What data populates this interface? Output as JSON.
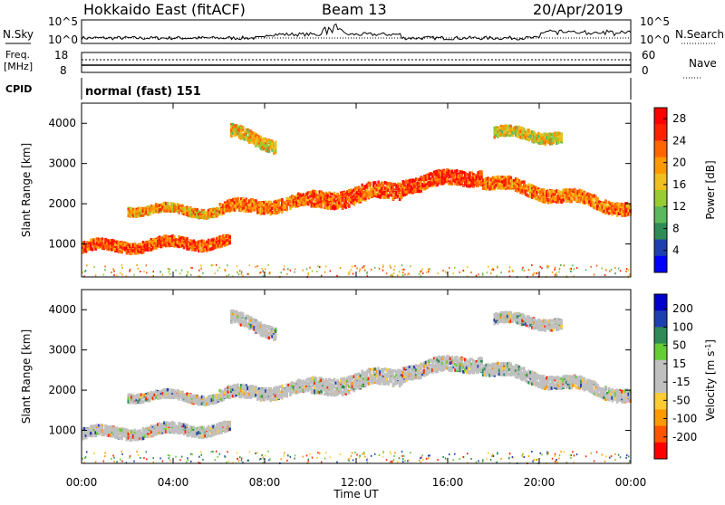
{
  "header": {
    "station": "Hokkaido East (fitACF)",
    "beam": "Beam 13",
    "date": "20/Apr/2019"
  },
  "noise_panel": {
    "left_label": "N.Sky",
    "right_label": "N.Search",
    "left_ticks": [
      "10^5",
      "10^0"
    ],
    "right_ticks": [
      "10^5",
      "10^0"
    ]
  },
  "freq_panel": {
    "left_label_1": "Freq.",
    "left_label_2": "[MHz]",
    "right_label": "Nave",
    "left_ticks": [
      "18",
      "8"
    ],
    "right_ticks": [
      "60",
      "0"
    ]
  },
  "cpid_panel": {
    "label": "CPID",
    "value": "normal (fast) 151"
  },
  "x_axis": {
    "label": "Time UT",
    "ticks": [
      "00:00",
      "04:00",
      "08:00",
      "12:00",
      "16:00",
      "20:00",
      "00:00"
    ]
  },
  "colors": {
    "power_scale": [
      "#0000ff",
      "#1e3fb0",
      "#2e8b57",
      "#5cb85c",
      "#99cc33",
      "#f0c020",
      "#ff9900",
      "#ff6600",
      "#ff2200",
      "#ff0000"
    ],
    "velocity_scale": [
      "#ff0000",
      "#ff5500",
      "#ff9900",
      "#ffcc33",
      "#c0c0c0",
      "#c0c0c0",
      "#66cc33",
      "#2e8b57",
      "#1e3fb0",
      "#0000cc"
    ]
  },
  "chart_data": [
    {
      "type": "heatmap",
      "title": "Power",
      "ylabel": "Slant Range [km]",
      "xlabel": "",
      "x_range_hours": [
        0,
        24
      ],
      "ylim": [
        180,
        4500
      ],
      "y_ticks": [
        "1000",
        "2000",
        "3000",
        "4000"
      ],
      "colorbar": {
        "label": "Power [dB]",
        "ticks": [
          "4",
          "8",
          "12",
          "16",
          "20",
          "24",
          "28"
        ],
        "range": [
          0,
          30
        ]
      },
      "bands": [
        {
          "x": [
            0,
            6.5
          ],
          "y_center": [
            950,
            1100
          ],
          "width": 250,
          "level": 24
        },
        {
          "x": [
            2,
            6
          ],
          "y_center": [
            1900,
            1850
          ],
          "width": 200,
          "level": 20
        },
        {
          "x": [
            6,
            10
          ],
          "y_center": [
            1900,
            2100
          ],
          "width": 300,
          "level": 22
        },
        {
          "x": [
            10,
            14
          ],
          "y_center": [
            2100,
            2400
          ],
          "width": 400,
          "level": 24
        },
        {
          "x": [
            14,
            17.5
          ],
          "y_center": [
            2500,
            2750
          ],
          "width": 350,
          "level": 26
        },
        {
          "x": [
            17.5,
            24
          ],
          "y_center": [
            2600,
            1900
          ],
          "width": 300,
          "level": 22
        },
        {
          "x": [
            6.5,
            8.5
          ],
          "y_center": [
            3800,
            3500
          ],
          "width": 300,
          "level": 18
        },
        {
          "x": [
            18,
            21
          ],
          "y_center": [
            3800,
            3700
          ],
          "width": 250,
          "level": 16
        }
      ]
    },
    {
      "type": "heatmap",
      "title": "Velocity",
      "ylabel": "Slant Range [km]",
      "xlabel": "Time UT",
      "x_range_hours": [
        0,
        24
      ],
      "ylim": [
        180,
        4500
      ],
      "y_ticks": [
        "1000",
        "2000",
        "3000",
        "4000"
      ],
      "colorbar": {
        "label": "Velocity [m s^-1]",
        "ticks": [
          "200",
          "100",
          "50",
          "15",
          "-15",
          "-50",
          "-100",
          "-200"
        ],
        "range": [
          -250,
          250
        ]
      }
    }
  ]
}
